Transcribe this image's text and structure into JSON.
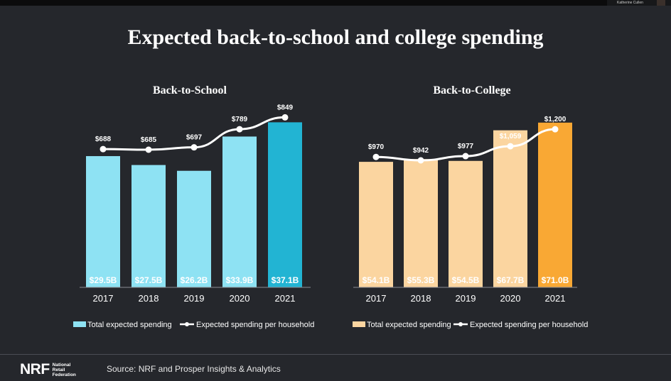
{
  "header": {
    "presenter_name": "Katherine Cullen"
  },
  "title": "Expected back-to-school and college spending",
  "footer": {
    "logo_mark": "NRF",
    "logo_lines": [
      "National",
      "Retail",
      "Federation"
    ],
    "source": "Source: NRF and Prosper Insights & Analytics"
  },
  "chart_data": [
    {
      "type": "bar",
      "title": "Back-to-School",
      "categories": [
        "2017",
        "2018",
        "2019",
        "2020",
        "2021"
      ],
      "series": [
        {
          "name": "Total expected spending",
          "values": [
            29.5,
            27.5,
            26.2,
            33.9,
            37.1
          ],
          "labels": [
            "$29.5B",
            "$27.5B",
            "$26.2B",
            "$33.9B",
            "$37.1B"
          ]
        },
        {
          "name": "Expected spending per household",
          "values": [
            688,
            685,
            697,
            789,
            849
          ],
          "labels": [
            "$688",
            "$685",
            "$697",
            "$789",
            "$849"
          ]
        }
      ],
      "colors": {
        "bar": "#8ee2f3",
        "bar_highlight": "#22b4d3",
        "line": "#ffffff"
      },
      "legend": "bottom"
    },
    {
      "type": "bar",
      "title": "Back-to-College",
      "categories": [
        "2017",
        "2018",
        "2019",
        "2020",
        "2021"
      ],
      "series": [
        {
          "name": "Total expected spending",
          "values": [
            54.1,
            55.3,
            54.5,
            67.7,
            71.0
          ],
          "labels": [
            "$54.1B",
            "$55.3B",
            "$54.5B",
            "$67.7B",
            "$71.0B"
          ]
        },
        {
          "name": "Expected spending per household",
          "values": [
            970,
            942,
            977,
            1059,
            1200
          ],
          "labels": [
            "$970",
            "$942",
            "$977",
            "$1,059",
            "$1,200"
          ]
        }
      ],
      "colors": {
        "bar": "#fbd5a0",
        "bar_highlight": "#f9a834",
        "line": "#ffffff"
      },
      "legend": "bottom"
    }
  ]
}
